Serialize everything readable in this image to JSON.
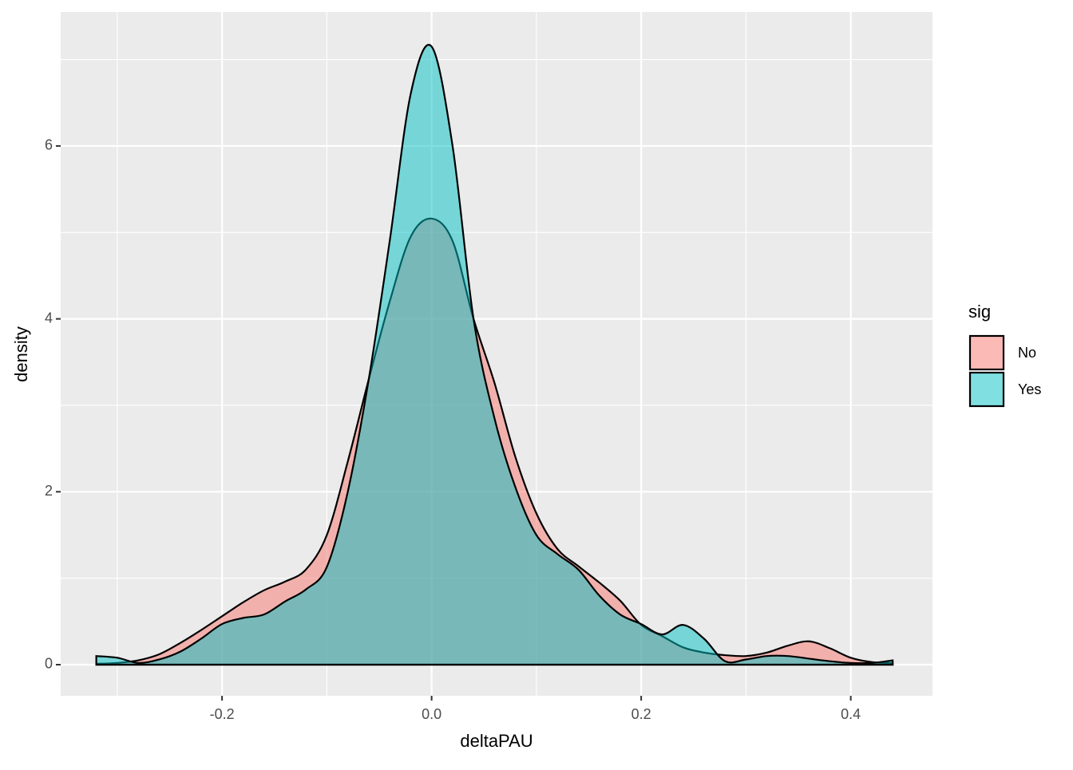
{
  "chart_data": {
    "type": "density",
    "x_label": "deltaPAU",
    "y_label": "density",
    "legend_title": "sig",
    "legend": "right",
    "grid": true,
    "xlim": [
      -0.354,
      0.478
    ],
    "ylim": [
      -0.36,
      7.55
    ],
    "xticks": [
      -0.2,
      {
        "value": 0,
        "label": "0.0"
      },
      0.2,
      0.4
    ],
    "yticks": [
      0,
      2,
      4,
      6
    ],
    "x_minor_ticks": [
      -0.3,
      -0.1,
      0.1,
      0.3
    ],
    "y_minor_ticks": [
      1,
      3,
      5,
      7
    ],
    "x": [
      -0.32,
      -0.3,
      -0.28,
      -0.26,
      -0.24,
      -0.22,
      -0.2,
      -0.18,
      -0.16,
      -0.14,
      -0.12,
      -0.1,
      -0.08,
      -0.06,
      -0.04,
      -0.02,
      0.0,
      0.02,
      0.04,
      0.06,
      0.08,
      0.1,
      0.12,
      0.14,
      0.16,
      0.18,
      0.2,
      0.22,
      0.24,
      0.26,
      0.28,
      0.3,
      0.32,
      0.34,
      0.36,
      0.38,
      0.4,
      0.42,
      0.44
    ],
    "series": [
      {
        "name": "No",
        "color": "#F8766D",
        "values": [
          0.01,
          0.02,
          0.05,
          0.12,
          0.25,
          0.4,
          0.56,
          0.72,
          0.86,
          0.96,
          1.1,
          1.5,
          2.35,
          3.3,
          4.2,
          4.95,
          5.16,
          4.9,
          4.0,
          3.26,
          2.4,
          1.75,
          1.34,
          1.14,
          0.95,
          0.74,
          0.46,
          0.33,
          0.2,
          0.14,
          0.11,
          0.1,
          0.14,
          0.22,
          0.27,
          0.19,
          0.08,
          0.03,
          0.02
        ]
      },
      {
        "name": "Yes",
        "color": "#00BFC4",
        "values": [
          0.1,
          0.08,
          0.02,
          0.06,
          0.15,
          0.3,
          0.47,
          0.54,
          0.58,
          0.73,
          0.87,
          1.13,
          2.0,
          3.3,
          4.9,
          6.6,
          7.15,
          6.0,
          4.0,
          2.85,
          2.05,
          1.5,
          1.28,
          1.1,
          0.8,
          0.58,
          0.47,
          0.35,
          0.46,
          0.3,
          0.04,
          0.06,
          0.1,
          0.1,
          0.07,
          0.04,
          0.02,
          0.02,
          0.05
        ]
      }
    ]
  }
}
